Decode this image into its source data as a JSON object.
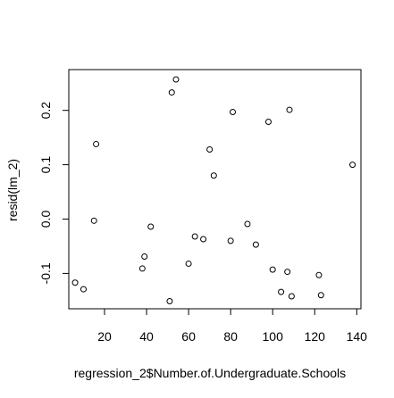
{
  "chart_data": {
    "type": "scatter",
    "title": "",
    "xlabel": "regression_2$Number.of.Undergraduate.Schools",
    "ylabel": "resid(lm_2)",
    "xlim": [
      3,
      142
    ],
    "ylim": [
      -0.165,
      0.275
    ],
    "x_ticks": [
      20,
      40,
      60,
      80,
      100,
      120,
      140
    ],
    "x_tick_labels": [
      "20",
      "40",
      "60",
      "80",
      "100",
      "120",
      "140"
    ],
    "y_ticks": [
      -0.1,
      0.0,
      0.1,
      0.2
    ],
    "y_tick_labels": [
      "-0.1",
      "0.0",
      "0.1",
      "0.2"
    ],
    "grid": false,
    "points": [
      {
        "x": 6,
        "y": -0.117
      },
      {
        "x": 10,
        "y": -0.129
      },
      {
        "x": 15,
        "y": -0.003
      },
      {
        "x": 16,
        "y": 0.138
      },
      {
        "x": 38,
        "y": -0.091
      },
      {
        "x": 39,
        "y": -0.069
      },
      {
        "x": 42,
        "y": -0.014
      },
      {
        "x": 51,
        "y": -0.151
      },
      {
        "x": 52,
        "y": 0.233
      },
      {
        "x": 54,
        "y": 0.257
      },
      {
        "x": 60,
        "y": -0.082
      },
      {
        "x": 63,
        "y": -0.032
      },
      {
        "x": 67,
        "y": -0.037
      },
      {
        "x": 70,
        "y": 0.128
      },
      {
        "x": 72,
        "y": 0.08
      },
      {
        "x": 80,
        "y": -0.04
      },
      {
        "x": 81,
        "y": 0.197
      },
      {
        "x": 88,
        "y": -0.009
      },
      {
        "x": 92,
        "y": -0.047
      },
      {
        "x": 98,
        "y": 0.179
      },
      {
        "x": 100,
        "y": -0.093
      },
      {
        "x": 104,
        "y": -0.134
      },
      {
        "x": 107,
        "y": -0.097
      },
      {
        "x": 108,
        "y": 0.201
      },
      {
        "x": 109,
        "y": -0.142
      },
      {
        "x": 122,
        "y": -0.103
      },
      {
        "x": 123,
        "y": -0.14
      },
      {
        "x": 138,
        "y": 0.1
      }
    ]
  }
}
